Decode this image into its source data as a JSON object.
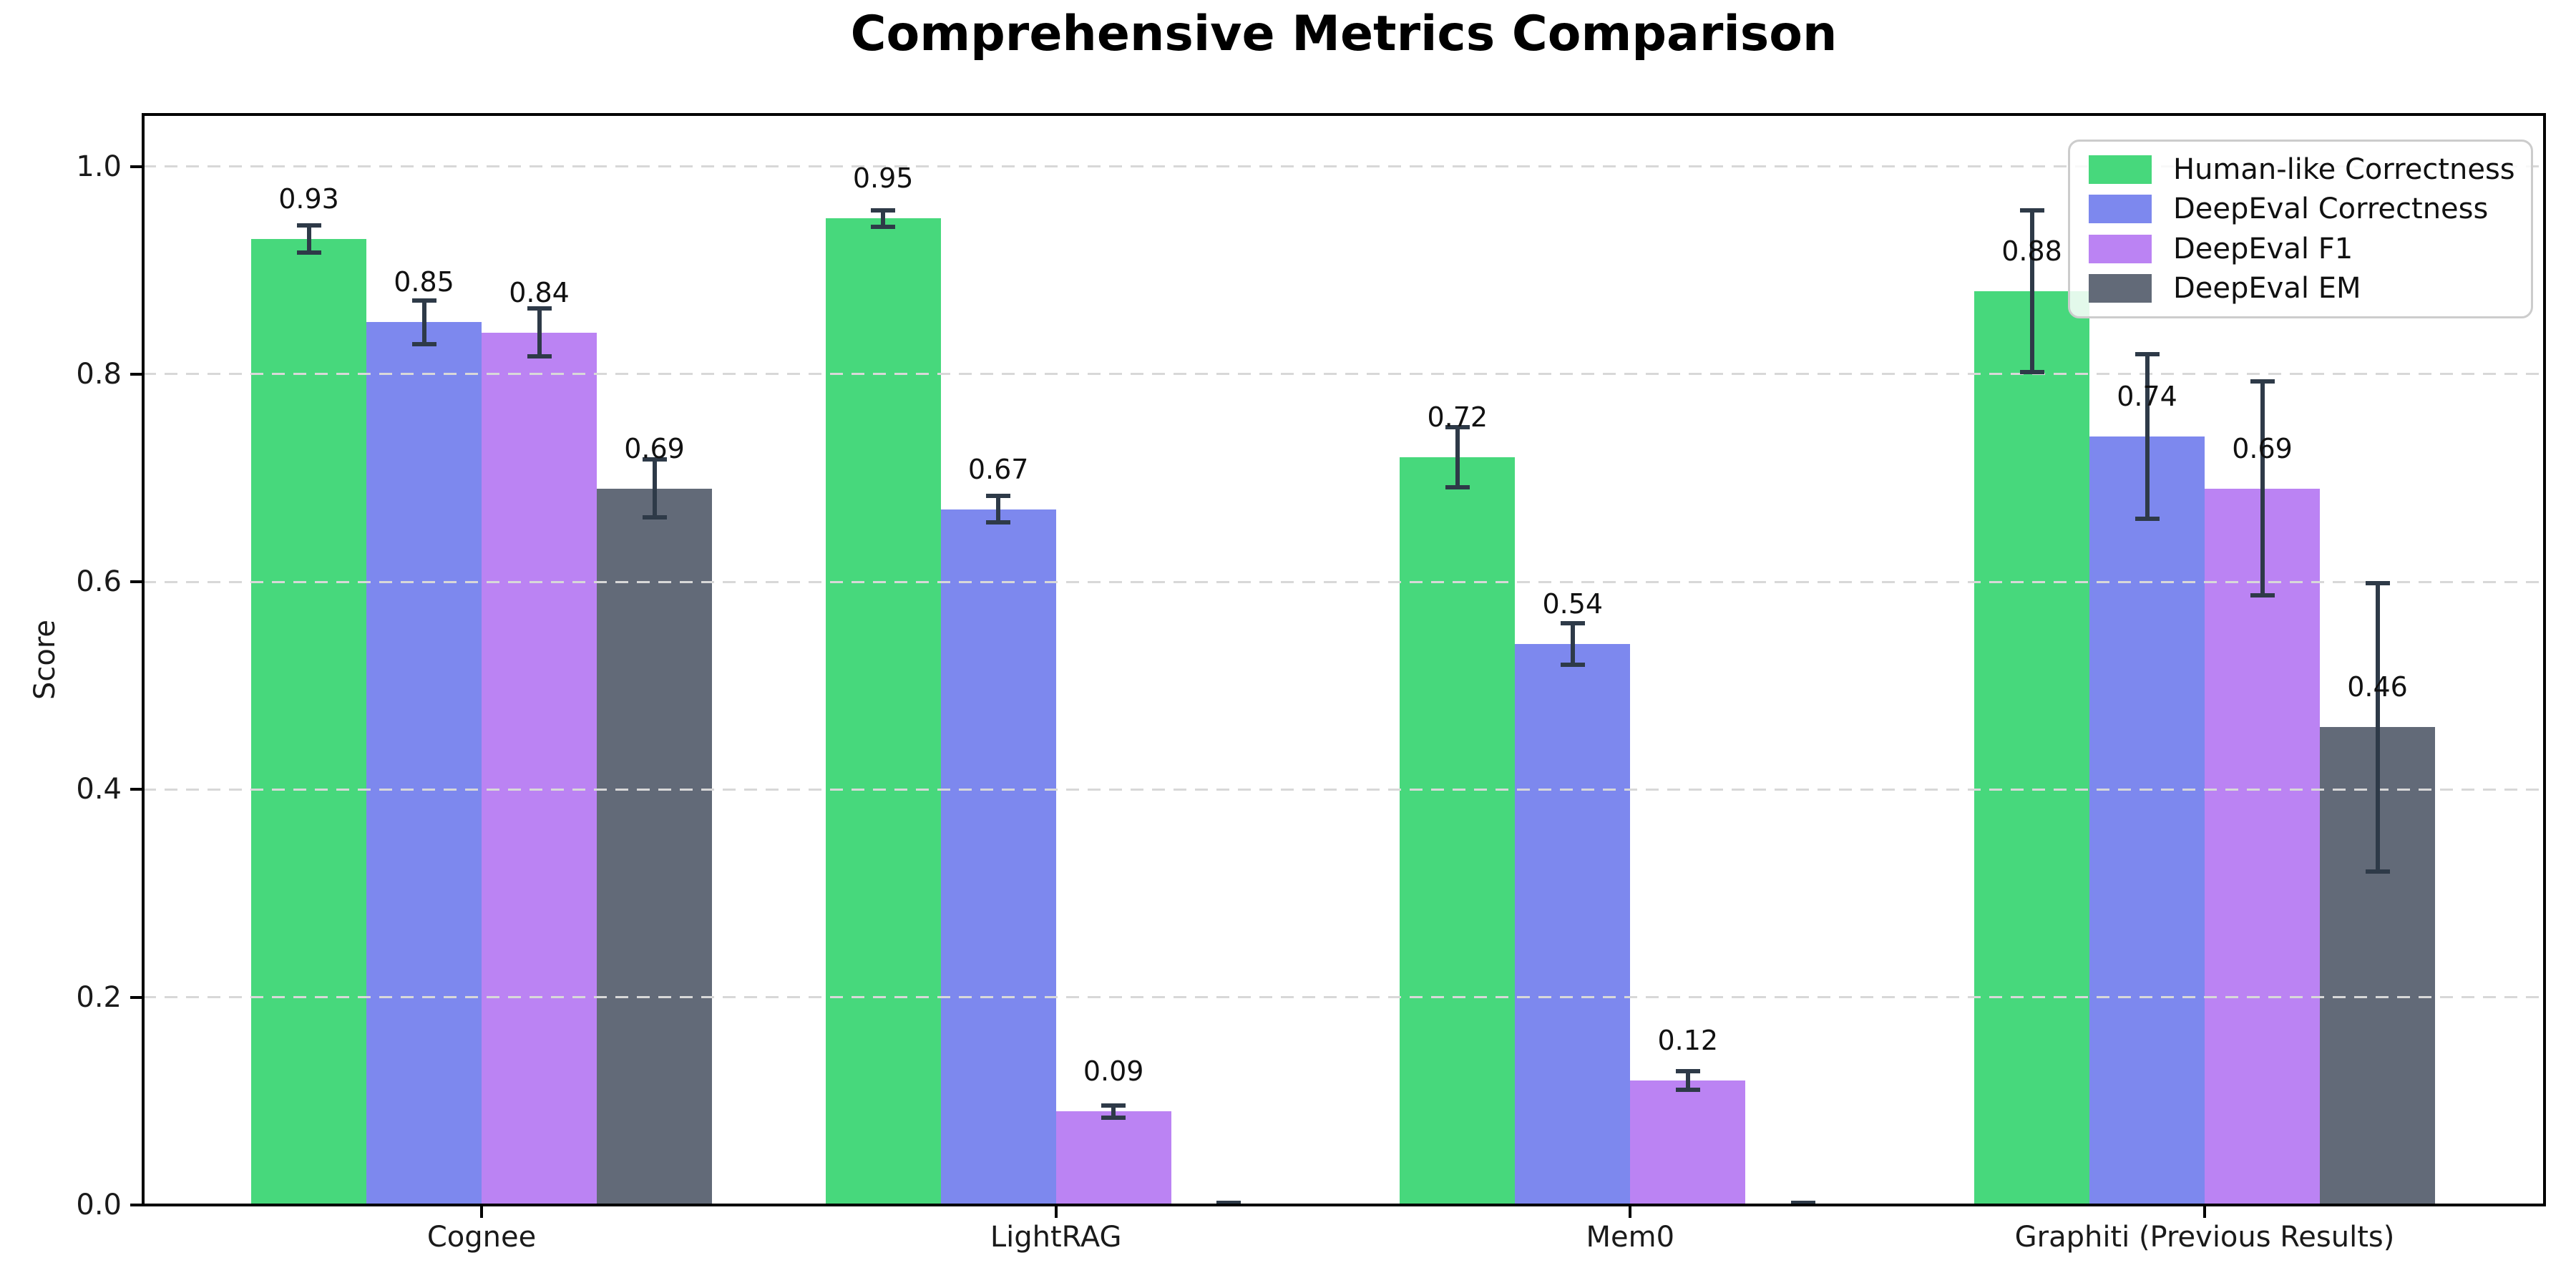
{
  "chart_data": {
    "type": "bar",
    "title": "Comprehensive Metrics Comparison",
    "ylabel": "Score",
    "categories": [
      "Cognee",
      "LightRAG",
      "Mem0",
      "Graphiti (Previous Results)"
    ],
    "series": [
      {
        "name": "Human-like Correctness",
        "color": "#47d87c",
        "values": [
          0.93,
          0.95,
          0.72,
          0.88
        ],
        "errors": [
          0.013,
          0.008,
          0.029,
          0.078
        ],
        "labels": [
          "0.93",
          "0.95",
          "0.72",
          "0.88"
        ]
      },
      {
        "name": "DeepEval Correctness",
        "color": "#7d88ee",
        "values": [
          0.85,
          0.67,
          0.54,
          0.74
        ],
        "errors": [
          0.021,
          0.013,
          0.02,
          0.079
        ],
        "labels": [
          "0.85",
          "0.67",
          "0.54",
          "0.74"
        ]
      },
      {
        "name": "DeepEval F1",
        "color": "#bb83f3",
        "values": [
          0.84,
          0.09,
          0.12,
          0.69
        ],
        "errors": [
          0.023,
          0.006,
          0.009,
          0.103
        ],
        "labels": [
          "0.84",
          "0.09",
          "0.12",
          "0.69"
        ]
      },
      {
        "name": "DeepEval EM",
        "color": "#626a78",
        "values": [
          0.69,
          0.0,
          0.0,
          0.46
        ],
        "errors": [
          0.028,
          0.002,
          0.002,
          0.139
        ],
        "labels": [
          "0.69",
          "",
          "",
          "0.46"
        ]
      }
    ],
    "yticks": [
      0.0,
      0.2,
      0.4,
      0.6,
      0.8,
      1.0
    ],
    "ytick_labels": [
      "0.0",
      "0.2",
      "0.4",
      "0.6",
      "0.8",
      "1.0"
    ],
    "ylim": [
      0,
      1.05
    ],
    "grid": {
      "axis": "y",
      "style": "dashed",
      "color": "#d8d8d8"
    },
    "legend": {
      "position": "upper-right",
      "entries": [
        "Human-like Correctness",
        "DeepEval Correctness",
        "DeepEval F1",
        "DeepEval EM"
      ]
    },
    "colors": {
      "error_bar": "#2e3a48",
      "text": "#1a1a1a",
      "spine": "#000000",
      "legend_border": "#cccccc",
      "legend_background": "rgba(255,255,255,0.85)"
    }
  }
}
